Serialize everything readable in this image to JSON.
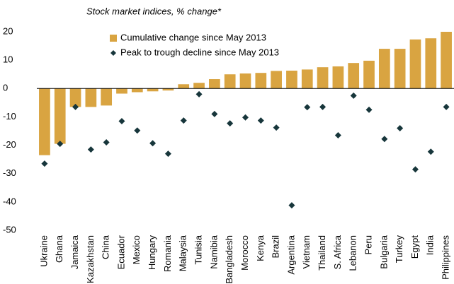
{
  "chart_data": {
    "type": "bar_scatter",
    "title": "Stock market indices, % change*",
    "categories": [
      "Ukraine",
      "Ghana",
      "Jamaica",
      "Kazakhstan",
      "China",
      "Ecuador",
      "Mexico",
      "Hungary",
      "Romania",
      "Malaysia",
      "Tunisia",
      "Namibia",
      "Bangladesh",
      "Morocco",
      "Kenya",
      "Brazil",
      "Argentina",
      "Vietnam",
      "Thailand",
      "S. Africa",
      "Lebanon",
      "Peru",
      "Bulgaria",
      "Turkey",
      "Egypt",
      "India",
      "Philippines"
    ],
    "series": [
      {
        "name": "Cumulative change since May 2013",
        "color": "#d9a441",
        "mark": "bar",
        "values": [
          -23.5,
          -19.5,
          -6.5,
          -6.5,
          -6,
          -1.8,
          -1.3,
          -1,
          -0.7,
          1.5,
          2,
          3.3,
          5,
          5.3,
          5.5,
          6.2,
          6.3,
          6.7,
          7.5,
          7.8,
          9,
          9.8,
          14,
          14,
          17.3,
          17.7,
          20
        ]
      },
      {
        "name": "Peak to trough decline since May 2013",
        "color": "#17363b",
        "mark": "diamond",
        "values": [
          -26.5,
          -19.5,
          -6.5,
          -21.5,
          -19,
          -11.5,
          -14.8,
          -19.3,
          -23,
          -11.3,
          -2,
          -9,
          -12.3,
          -10.2,
          -11.3,
          -13.8,
          -41.2,
          -6.6,
          -6.5,
          -16.5,
          -2.5,
          -7.5,
          -17.8,
          -14,
          -28.5,
          -22.3,
          -6.5
        ]
      }
    ],
    "ylim": [
      -50,
      20
    ],
    "yticks": [
      20,
      10,
      0,
      -10,
      -20,
      -30,
      -40,
      -50
    ],
    "grid": false
  }
}
